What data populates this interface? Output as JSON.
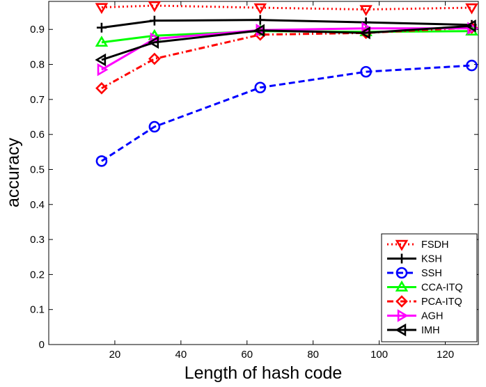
{
  "chart_data": {
    "type": "line",
    "title": "",
    "xlabel": "Length of hash code",
    "ylabel": "accuracy",
    "xlim": [
      0,
      130
    ],
    "ylim": [
      0,
      0.98
    ],
    "xticks": [
      20,
      40,
      60,
      80,
      100,
      120
    ],
    "yticks": [
      0,
      0.1,
      0.2,
      0.3,
      0.4,
      0.5,
      0.6,
      0.7,
      0.8,
      0.9
    ],
    "x": [
      16,
      32,
      64,
      96,
      128
    ],
    "grid": false,
    "legend_position": "bottom-right",
    "series": [
      {
        "name": "FSDH",
        "values": [
          0.963,
          0.968,
          0.962,
          0.957,
          0.962
        ],
        "color": "#ff0000",
        "line_style": "dotted",
        "marker": "triangle-down"
      },
      {
        "name": "KSH",
        "values": [
          0.905,
          0.925,
          0.927,
          0.92,
          0.913
        ],
        "color": "#000000",
        "line_style": "solid",
        "marker": "plus"
      },
      {
        "name": "SSH",
        "values": [
          0.524,
          0.622,
          0.734,
          0.779,
          0.797
        ],
        "color": "#0000ff",
        "line_style": "dashed",
        "marker": "circle"
      },
      {
        "name": "CCA-ITQ",
        "values": [
          0.863,
          0.882,
          0.895,
          0.893,
          0.895
        ],
        "color": "#00ff00",
        "line_style": "solid",
        "marker": "triangle-up"
      },
      {
        "name": "PCA-ITQ",
        "values": [
          0.732,
          0.816,
          0.885,
          0.89,
          0.905
        ],
        "color": "#ff0000",
        "line_style": "dashdot",
        "marker": "diamond"
      },
      {
        "name": "AGH",
        "values": [
          0.785,
          0.873,
          0.898,
          0.903,
          0.903
        ],
        "color": "#ff00ff",
        "line_style": "solid",
        "marker": "triangle-right"
      },
      {
        "name": "IMH",
        "values": [
          0.813,
          0.863,
          0.897,
          0.89,
          0.91
        ],
        "color": "#000000",
        "line_style": "solid",
        "marker": "triangle-left"
      }
    ]
  }
}
